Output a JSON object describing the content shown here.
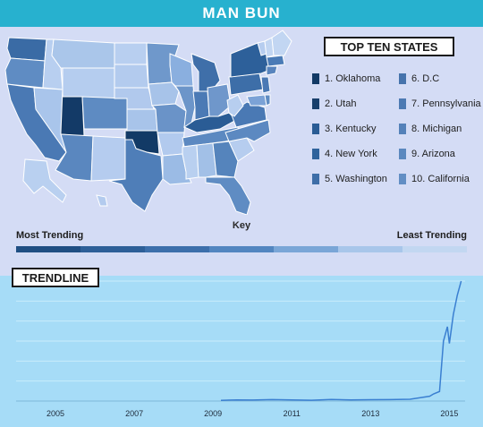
{
  "header": {
    "title": "MAN BUN"
  },
  "top_states": {
    "title": "TOP TEN STATES",
    "items": [
      {
        "label": "1. Oklahoma",
        "color": "#123a66"
      },
      {
        "label": "2. Utah",
        "color": "#183f6b"
      },
      {
        "label": "3. Kentucky",
        "color": "#2a5c95"
      },
      {
        "label": "4. New York",
        "color": "#2f639c"
      },
      {
        "label": "5. Washington",
        "color": "#3e6ea8"
      },
      {
        "label": "6. D.C",
        "color": "#4673ac"
      },
      {
        "label": "7. Pennsylvania",
        "color": "#4d7ab3"
      },
      {
        "label": "8. Michigan",
        "color": "#5481b9"
      },
      {
        "label": "9. Arizona",
        "color": "#5b88bf"
      },
      {
        "label": "10. California",
        "color": "#628ec4"
      }
    ]
  },
  "key": {
    "label": "Key",
    "most": "Most Trending",
    "least": "Least Trending",
    "colors": [
      "#1f4f83",
      "#2d5f98",
      "#3c6fab",
      "#5286c0",
      "#7aa6d7",
      "#a8c6ea",
      "#c2d7f1"
    ]
  },
  "map": {
    "state_colors": {
      "WA": "#3a6ba5",
      "OR": "#5f8cc3",
      "CA": "#4a79b4",
      "ID": "#b8cff0",
      "NV": "#a9c5eb",
      "AZ": "#5a87bf",
      "UT": "#133a67",
      "MT": "#aac6ea",
      "WY": "#b5cdef",
      "CO": "#5e8bc2",
      "NM": "#b5ccef",
      "ND": "#b8cff0",
      "SD": "#b3cbee",
      "NE": "#b1c9ed",
      "KS": "#a8c4ea",
      "OK": "#123a66",
      "TX": "#4f7eb8",
      "MN": "#6f98cb",
      "IA": "#a7c3e9",
      "MO": "#6a93c8",
      "AR": "#b2caee",
      "LA": "#9bbbe5",
      "WI": "#8aafdf",
      "IL": "#6c95c9",
      "MI": "#3f6fa9",
      "IN": "#4b7ab5",
      "OH": "#6f97cb",
      "KY": "#2a5c95",
      "TN": "#5c89c1",
      "MS": "#b9d0f0",
      "AL": "#a2c0e7",
      "GA": "#5584bc",
      "FL": "#5f8cc3",
      "SC": "#b6cdef",
      "NC": "#5c89c1",
      "VA": "#4a79b4",
      "WV": "#b7ceef",
      "PA": "#3d6ea8",
      "NY": "#2d609a",
      "VT": "#b6cdef",
      "NH": "#c2d6f2",
      "ME": "#c2d6f2",
      "MA": "#4a7bb6",
      "CT": "#5884bd",
      "NJ": "#4a79b4",
      "MD": "#7ba2d6",
      "DE": "#5f8cc3",
      "AK": "#b9d0f0",
      "HI": "#b3cbee"
    }
  },
  "trendline": {
    "title": "TRENDLINE",
    "line_color": "#3a7fd1",
    "bg_color": "#a6dcf7",
    "grid_color": "#c9ecfb"
  },
  "chart_data": {
    "type": "line",
    "title": "TRENDLINE",
    "xlabel": "",
    "ylabel": "",
    "xlim": [
      2004,
      2015.4
    ],
    "ylim": [
      0,
      100
    ],
    "xticks": [
      "2005",
      "2007",
      "2009",
      "2011",
      "2013",
      "2015"
    ],
    "grid": true,
    "x": [
      2009.2,
      2009.6,
      2010.0,
      2010.5,
      2011.0,
      2011.5,
      2012.0,
      2012.5,
      2013.0,
      2013.5,
      2014.0,
      2014.3,
      2014.5,
      2014.6,
      2014.75,
      2014.85,
      2014.95,
      2015.0,
      2015.05,
      2015.1,
      2015.2,
      2015.3
    ],
    "y": [
      0.5,
      1,
      0.8,
      1.2,
      1,
      0.7,
      1.3,
      1,
      1.1,
      1.2,
      1.5,
      3,
      4,
      6,
      8,
      50,
      62,
      48,
      60,
      72,
      88,
      100
    ]
  }
}
